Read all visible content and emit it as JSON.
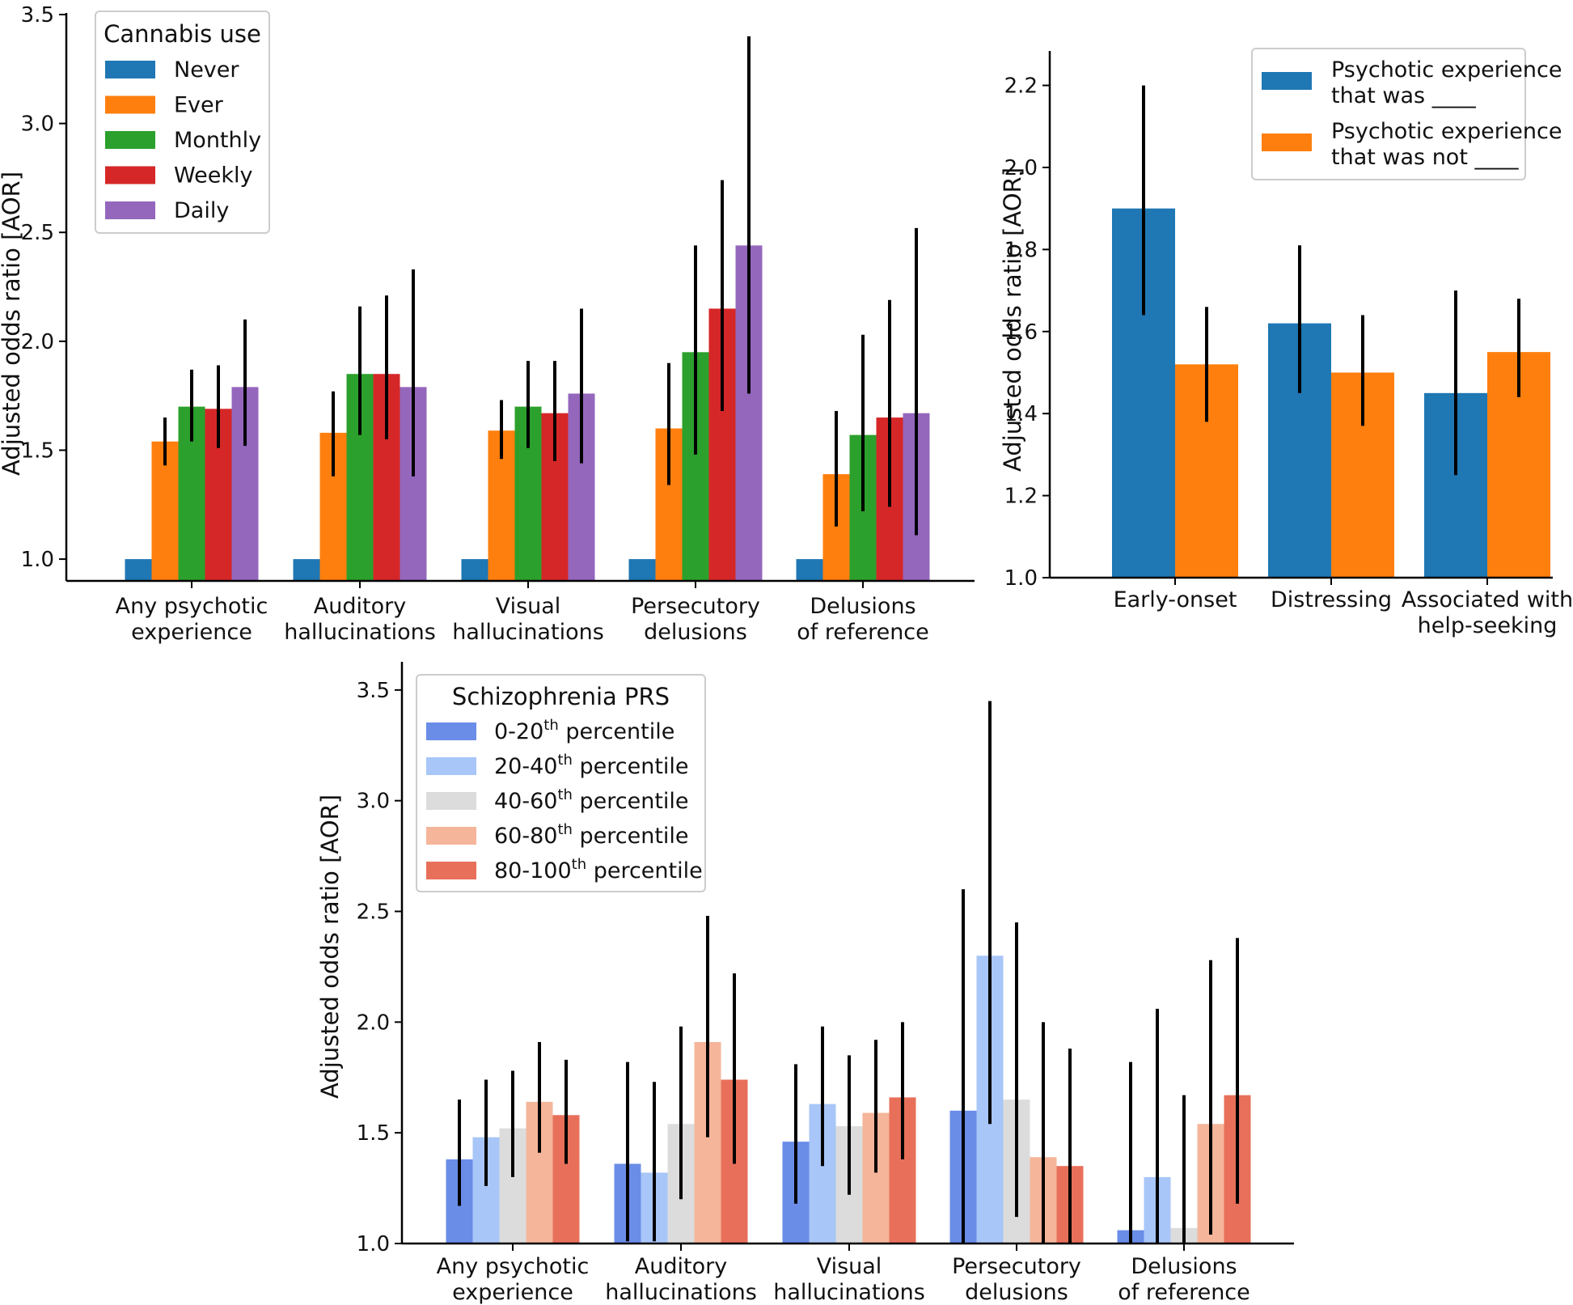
{
  "chart_data": [
    {
      "id": "cannabis",
      "type": "bar",
      "ylabel": "Adjusted odds ratio [AOR]",
      "ylim": [
        0.9,
        3.5
      ],
      "yticks": [
        "1.0",
        "1.5",
        "2.0",
        "2.5",
        "3.0",
        "3.5"
      ],
      "categories": [
        [
          "Any psychotic",
          "experience"
        ],
        [
          "Auditory",
          "hallucinations"
        ],
        [
          "Visual",
          "hallucinations"
        ],
        [
          "Persecutory",
          "delusions"
        ],
        [
          "Delusions",
          "of reference"
        ]
      ],
      "legend": {
        "title": "Cannabis use",
        "placement": "upper-left"
      },
      "series": [
        {
          "name": "Never",
          "color": "#1f77b4",
          "values": [
            1.0,
            1.0,
            1.0,
            1.0,
            1.0
          ],
          "err_low": [
            null,
            null,
            null,
            null,
            null
          ],
          "err_high": [
            null,
            null,
            null,
            null,
            null
          ]
        },
        {
          "name": "Ever",
          "color": "#ff7f0e",
          "values": [
            1.54,
            1.58,
            1.59,
            1.6,
            1.39
          ],
          "err_low": [
            1.43,
            1.38,
            1.46,
            1.34,
            1.15
          ],
          "err_high": [
            1.65,
            1.77,
            1.73,
            1.9,
            1.68
          ]
        },
        {
          "name": "Monthly",
          "color": "#2ca02c",
          "values": [
            1.7,
            1.85,
            1.7,
            1.95,
            1.57
          ],
          "err_low": [
            1.54,
            1.57,
            1.51,
            1.48,
            1.22
          ],
          "err_high": [
            1.87,
            2.16,
            1.91,
            2.44,
            2.03
          ]
        },
        {
          "name": "Weekly",
          "color": "#d62728",
          "values": [
            1.69,
            1.85,
            1.67,
            2.15,
            1.65
          ],
          "err_low": [
            1.51,
            1.55,
            1.45,
            1.68,
            1.24
          ],
          "err_high": [
            1.89,
            2.21,
            1.91,
            2.74,
            2.19
          ]
        },
        {
          "name": "Daily",
          "color": "#9467bd",
          "values": [
            1.79,
            1.79,
            1.76,
            2.44,
            1.67
          ],
          "err_low": [
            1.52,
            1.38,
            1.44,
            1.76,
            1.11
          ],
          "err_high": [
            2.1,
            2.33,
            2.15,
            3.4,
            2.52
          ]
        }
      ]
    },
    {
      "id": "psychotic",
      "type": "bar",
      "ylabel": "Adjusted odds ratio [AOR]",
      "ylim": [
        1.0,
        2.28
      ],
      "yticks": [
        "1.0",
        "1.2",
        "1.4",
        "1.6",
        "1.8",
        "2.0",
        "2.2"
      ],
      "categories": [
        [
          "Early-onset"
        ],
        [
          "Distressing"
        ],
        [
          "Associated with",
          "help-seeking"
        ]
      ],
      "legend": {
        "placement": "upper-right"
      },
      "series": [
        {
          "name": [
            "Psychotic experience",
            "that was ____"
          ],
          "color": "#1f77b4",
          "values": [
            1.9,
            1.62,
            1.45
          ],
          "err_low": [
            1.64,
            1.45,
            1.25
          ],
          "err_high": [
            2.2,
            1.81,
            1.7
          ]
        },
        {
          "name": [
            "Psychotic experience",
            "that was not ____"
          ],
          "color": "#ff7f0e",
          "values": [
            1.52,
            1.5,
            1.55
          ],
          "err_low": [
            1.38,
            1.37,
            1.44
          ],
          "err_high": [
            1.66,
            1.64,
            1.68
          ]
        }
      ]
    },
    {
      "id": "prs",
      "type": "bar",
      "ylabel": "Adjusted odds ratio [AOR]",
      "ylim": [
        1.0,
        3.62
      ],
      "yticks": [
        "1.0",
        "1.5",
        "2.0",
        "2.5",
        "3.0",
        "3.5"
      ],
      "categories": [
        [
          "Any psychotic",
          "experience"
        ],
        [
          "Auditory",
          "hallucinations"
        ],
        [
          "Visual",
          "hallucinations"
        ],
        [
          "Persecutory",
          "delusions"
        ],
        [
          "Delusions",
          "of reference"
        ]
      ],
      "legend": {
        "title": "Schizophrenia PRS",
        "placement": "upper-left",
        "superscript": "th",
        "suffix": "percentile"
      },
      "series": [
        {
          "name": "0-20",
          "color": "#6a8de8",
          "values": [
            1.38,
            1.36,
            1.46,
            1.6,
            1.06
          ],
          "err_low": [
            1.17,
            1.01,
            1.18,
            1.0,
            1.0
          ],
          "err_high": [
            1.65,
            1.82,
            1.81,
            2.6,
            1.82
          ]
        },
        {
          "name": "20-40",
          "color": "#a8c6f8",
          "values": [
            1.48,
            1.32,
            1.63,
            2.3,
            1.3
          ],
          "err_low": [
            1.26,
            1.01,
            1.35,
            1.54,
            1.0
          ],
          "err_high": [
            1.74,
            1.73,
            1.98,
            3.45,
            2.06
          ]
        },
        {
          "name": "40-60",
          "color": "#dcdcdc",
          "values": [
            1.52,
            1.54,
            1.53,
            1.65,
            1.07
          ],
          "err_low": [
            1.3,
            1.2,
            1.22,
            1.12,
            1.0
          ],
          "err_high": [
            1.78,
            1.98,
            1.85,
            2.45,
            1.67
          ]
        },
        {
          "name": "60-80",
          "color": "#f5b59a",
          "values": [
            1.64,
            1.91,
            1.59,
            1.39,
            1.54
          ],
          "err_low": [
            1.41,
            1.48,
            1.32,
            1.0,
            1.04
          ],
          "err_high": [
            1.91,
            2.48,
            1.92,
            2.0,
            2.28
          ]
        },
        {
          "name": "80-100",
          "color": "#e8705a",
          "values": [
            1.58,
            1.74,
            1.66,
            1.35,
            1.67
          ],
          "err_low": [
            1.36,
            1.36,
            1.38,
            1.0,
            1.18
          ],
          "err_high": [
            1.83,
            2.22,
            2.0,
            1.88,
            2.38
          ]
        }
      ]
    }
  ]
}
